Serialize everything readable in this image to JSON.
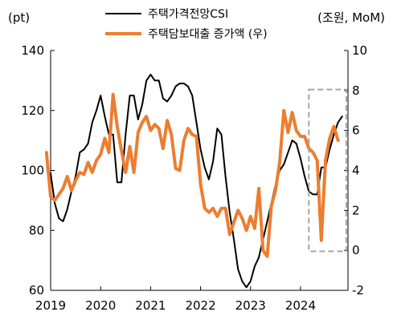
{
  "chart_data": {
    "type": "line",
    "left_unit": "(pt)",
    "right_unit": "(조원, MoM)",
    "y_left": {
      "ticks": [
        60,
        80,
        100,
        120,
        140
      ],
      "range": [
        60,
        140
      ]
    },
    "y_right": {
      "ticks": [
        -2,
        0,
        2,
        4,
        6,
        8,
        10
      ],
      "range": [
        -2,
        10
      ]
    },
    "x_ticks": [
      "2019",
      "2020",
      "2021",
      "2022",
      "2023",
      "2024"
    ],
    "series": [
      {
        "name": "주택가격전망CSI",
        "axis": "left",
        "color": "#000000",
        "points": [
          [
            "2019-01",
            99
          ],
          [
            "2019-02",
            89
          ],
          [
            "2019-03",
            84
          ],
          [
            "2019-04",
            83
          ],
          [
            "2019-05",
            87
          ],
          [
            "2019-06",
            93
          ],
          [
            "2019-07",
            98
          ],
          [
            "2019-08",
            106
          ],
          [
            "2019-09",
            107
          ],
          [
            "2019-10",
            109
          ],
          [
            "2019-11",
            116
          ],
          [
            "2019-12",
            120
          ],
          [
            "2020-01",
            125
          ],
          [
            "2020-02",
            118
          ],
          [
            "2020-03",
            112
          ],
          [
            "2020-04",
            112
          ],
          [
            "2020-05",
            96
          ],
          [
            "2020-06",
            96
          ],
          [
            "2020-07",
            112
          ],
          [
            "2020-08",
            125
          ],
          [
            "2020-09",
            125
          ],
          [
            "2020-10",
            117
          ],
          [
            "2020-11",
            122
          ],
          [
            "2020-12",
            130
          ],
          [
            "2021-01",
            132
          ],
          [
            "2021-02",
            130
          ],
          [
            "2021-03",
            130
          ],
          [
            "2021-04",
            124
          ],
          [
            "2021-05",
            123
          ],
          [
            "2021-06",
            125
          ],
          [
            "2021-07",
            128
          ],
          [
            "2021-08",
            129
          ],
          [
            "2021-09",
            129
          ],
          [
            "2021-10",
            128
          ],
          [
            "2021-11",
            125
          ],
          [
            "2021-12",
            116
          ],
          [
            "2022-01",
            107
          ],
          [
            "2022-02",
            101
          ],
          [
            "2022-03",
            97
          ],
          [
            "2022-04",
            103
          ],
          [
            "2022-05",
            114
          ],
          [
            "2022-06",
            112
          ],
          [
            "2022-07",
            98
          ],
          [
            "2022-08",
            86
          ],
          [
            "2022-09",
            77
          ],
          [
            "2022-10",
            67
          ],
          [
            "2022-11",
            63
          ],
          [
            "2022-12",
            61
          ],
          [
            "2023-01",
            63
          ],
          [
            "2023-02",
            68
          ],
          [
            "2023-03",
            71
          ],
          [
            "2023-04",
            77
          ],
          [
            "2023-05",
            83
          ],
          [
            "2023-06",
            89
          ],
          [
            "2023-07",
            95
          ],
          [
            "2023-08",
            100
          ],
          [
            "2023-09",
            102
          ],
          [
            "2023-10",
            106
          ],
          [
            "2023-11",
            110
          ],
          [
            "2023-12",
            109
          ],
          [
            "2024-01",
            104
          ],
          [
            "2024-02",
            98
          ],
          [
            "2024-03",
            93
          ],
          [
            "2024-04",
            92
          ],
          [
            "2024-05",
            92
          ],
          [
            "2024-06",
            101
          ],
          [
            "2024-07",
            101
          ],
          [
            "2024-08",
            107
          ],
          [
            "2024-09",
            112
          ],
          [
            "2024-10",
            116
          ],
          [
            "2024-11",
            118
          ]
        ]
      },
      {
        "name": "주택담보대출 증가액 (우)",
        "axis": "right",
        "color": "#ED7D31",
        "points": [
          [
            "2018-12",
            4.9
          ],
          [
            "2019-01",
            2.7
          ],
          [
            "2019-02",
            2.5
          ],
          [
            "2019-03",
            2.8
          ],
          [
            "2019-04",
            3.1
          ],
          [
            "2019-05",
            3.7
          ],
          [
            "2019-06",
            3.0
          ],
          [
            "2019-07",
            3.5
          ],
          [
            "2019-08",
            3.9
          ],
          [
            "2019-09",
            3.8
          ],
          [
            "2019-10",
            4.4
          ],
          [
            "2019-11",
            3.9
          ],
          [
            "2019-12",
            4.5
          ],
          [
            "2020-01",
            4.8
          ],
          [
            "2020-02",
            5.6
          ],
          [
            "2020-03",
            4.9
          ],
          [
            "2020-04",
            7.8
          ],
          [
            "2020-05",
            6.2
          ],
          [
            "2020-06",
            5.0
          ],
          [
            "2020-07",
            3.9
          ],
          [
            "2020-08",
            5.2
          ],
          [
            "2020-09",
            3.9
          ],
          [
            "2020-10",
            5.9
          ],
          [
            "2020-11",
            6.4
          ],
          [
            "2020-12",
            6.7
          ],
          [
            "2021-01",
            6.0
          ],
          [
            "2021-02",
            6.3
          ],
          [
            "2021-03",
            6.1
          ],
          [
            "2021-04",
            5.1
          ],
          [
            "2021-05",
            6.5
          ],
          [
            "2021-06",
            5.8
          ],
          [
            "2021-07",
            4.1
          ],
          [
            "2021-08",
            4.0
          ],
          [
            "2021-09",
            5.5
          ],
          [
            "2021-10",
            6.1
          ],
          [
            "2021-11",
            5.8
          ],
          [
            "2021-12",
            5.7
          ],
          [
            "2022-01",
            3.3
          ],
          [
            "2022-02",
            2.1
          ],
          [
            "2022-03",
            1.9
          ],
          [
            "2022-04",
            2.1
          ],
          [
            "2022-05",
            1.7
          ],
          [
            "2022-06",
            2.1
          ],
          [
            "2022-07",
            2.1
          ],
          [
            "2022-08",
            0.8
          ],
          [
            "2022-09",
            1.4
          ],
          [
            "2022-10",
            2.0
          ],
          [
            "2022-11",
            1.6
          ],
          [
            "2022-12",
            1.0
          ],
          [
            "2023-01",
            1.7
          ],
          [
            "2023-02",
            1.1
          ],
          [
            "2023-03",
            3.1
          ],
          [
            "2023-04",
            0.0
          ],
          [
            "2023-05",
            -0.3
          ],
          [
            "2023-06",
            2.2
          ],
          [
            "2023-07",
            3.0
          ],
          [
            "2023-08",
            4.4
          ],
          [
            "2023-09",
            7.0
          ],
          [
            "2023-10",
            5.9
          ],
          [
            "2023-11",
            6.9
          ],
          [
            "2023-12",
            6.0
          ],
          [
            "2024-01",
            5.7
          ],
          [
            "2024-02",
            5.7
          ],
          [
            "2024-03",
            5.1
          ],
          [
            "2024-04",
            4.9
          ],
          [
            "2024-05",
            4.5
          ],
          [
            "2024-06",
            0.5
          ],
          [
            "2024-07",
            4.5
          ],
          [
            "2024-08",
            5.6
          ],
          [
            "2024-09",
            6.2
          ],
          [
            "2024-10",
            5.5
          ]
        ]
      }
    ],
    "highlight": {
      "from": "2024-03",
      "to": "2024-12",
      "y_left": [
        73,
        127
      ],
      "style": "dashed"
    },
    "legend_placement": "top-center",
    "grid": false
  }
}
